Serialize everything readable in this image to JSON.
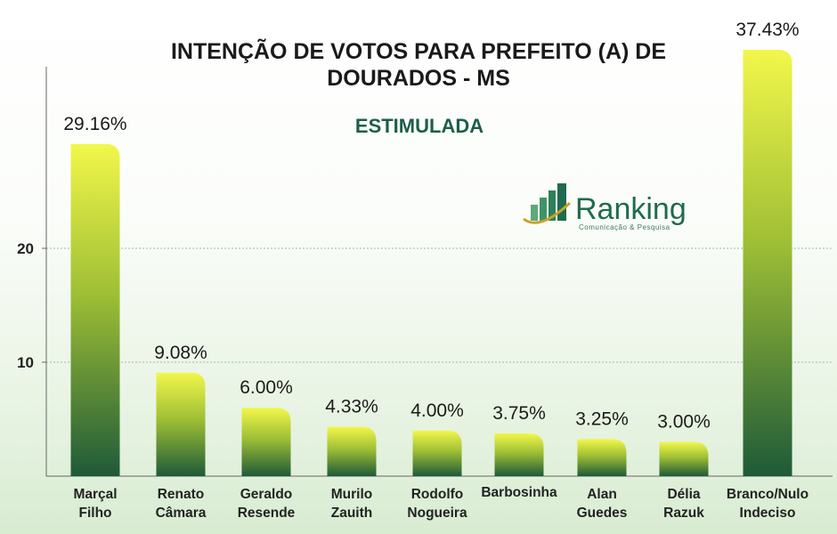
{
  "chart_data": {
    "type": "bar",
    "title_lines": [
      "INTENÇÃO DE VOTOS PARA PREFEITO (A) DE",
      "DOURADOS - MS"
    ],
    "subtitle": "ESTIMULADA",
    "categories": [
      [
        "Marçal",
        "Filho"
      ],
      [
        "Renato",
        "Câmara"
      ],
      [
        "Geraldo",
        "Resende"
      ],
      [
        "Murilo",
        "Zauith"
      ],
      [
        "Rodolfo",
        "Nogueira"
      ],
      [
        "Barbosinha"
      ],
      [
        "Alan",
        "Guedes"
      ],
      [
        "Délia",
        "Razuk"
      ],
      [
        "Branco/Nulo",
        "Indeciso"
      ]
    ],
    "values": [
      29.16,
      9.08,
      6.0,
      4.33,
      4.0,
      3.75,
      3.25,
      3.0,
      37.43
    ],
    "data_labels": [
      "29.16%",
      "9.08%",
      "6.00%",
      "4.33%",
      "4.00%",
      "3.75%",
      "3.25%",
      "3.00%",
      "37.43%"
    ],
    "y_ticks": [
      10,
      20
    ],
    "ylim": [
      0,
      36
    ],
    "grid": true,
    "colors": {
      "bar_top": "#f2f74a",
      "bar_mid": "#9fbf35",
      "bar_bottom": "#1e5a38",
      "subtitle": "#1d5e4a",
      "logo_green": "#1f6b4f",
      "logo_gold": "#c9a227"
    }
  },
  "logo": {
    "name": "Ranking",
    "tagline": "Comunicação & Pesquisa",
    "icon": "bar-chart-logo-icon"
  }
}
